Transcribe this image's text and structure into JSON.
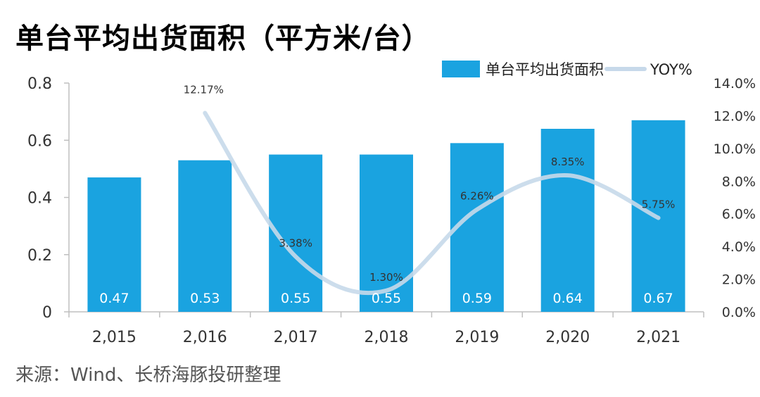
{
  "title": "单台平均出货面积（平方米/台）",
  "source": "来源：Wind、长桥海豚投研整理",
  "chart_data": {
    "type": "bar",
    "categories": [
      "2,015",
      "2,016",
      "2,017",
      "2,018",
      "2,019",
      "2,020",
      "2,021"
    ],
    "series": [
      {
        "name": "单台平均出货面积",
        "type": "bar",
        "axis": "left",
        "values": [
          0.47,
          0.53,
          0.55,
          0.55,
          0.59,
          0.64,
          0.67
        ],
        "labels": [
          "0.47",
          "0.53",
          "0.55",
          "0.55",
          "0.59",
          "0.64",
          "0.67"
        ],
        "color": "#1aa3e0"
      },
      {
        "name": "YOY%",
        "type": "line",
        "axis": "right",
        "values": [
          null,
          12.17,
          3.38,
          1.3,
          6.26,
          8.35,
          5.75
        ],
        "labels": [
          "",
          "12.17%",
          "3.38%",
          "1.30%",
          "6.26%",
          "8.35%",
          "5.75%"
        ],
        "color": "#c7d9ea"
      }
    ],
    "y_left": {
      "min": 0,
      "max": 0.8,
      "ticks": [
        0,
        0.2,
        0.4,
        0.6,
        0.8
      ],
      "tick_labels": [
        "0",
        "0.2",
        "0.4",
        "0.6",
        "0.8"
      ]
    },
    "y_right": {
      "min": 0,
      "max": 14,
      "ticks": [
        0,
        2,
        4,
        6,
        8,
        10,
        12,
        14
      ],
      "tick_labels": [
        "0.0%",
        "2.0%",
        "4.0%",
        "6.0%",
        "8.0%",
        "10.0%",
        "12.0%",
        "14.0%"
      ]
    },
    "legend": "top-right",
    "grid": false
  }
}
